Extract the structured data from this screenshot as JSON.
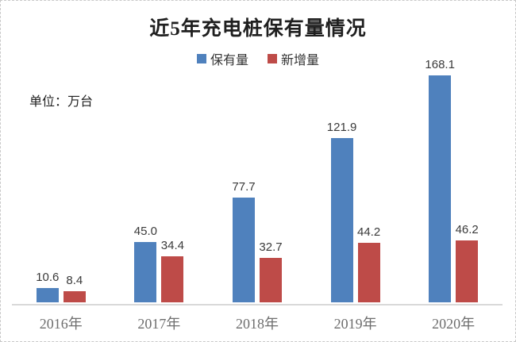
{
  "title": "近5年充电桩保有量情况",
  "unit_label": "单位：万台",
  "legend": [
    {
      "label": "保有量",
      "color": "#4F81BD"
    },
    {
      "label": "新增量",
      "color": "#BE4B48"
    }
  ],
  "colors": {
    "axis": "#d9d9d9",
    "value_label_text": "#3a3a3a",
    "category_text": "#6e6e6e"
  },
  "chart_data": {
    "type": "bar",
    "title": "近5年充电桩保有量情况",
    "categories": [
      "2016年",
      "2017年",
      "2018年",
      "2019年",
      "2020年"
    ],
    "series": [
      {
        "name": "保有量",
        "color": "#4F81BD",
        "values": [
          10.6,
          45.0,
          77.7,
          121.9,
          168.1
        ],
        "labels": [
          "10.6",
          "45.0",
          "77.7",
          "121.9",
          "168.1"
        ]
      },
      {
        "name": "新增量",
        "color": "#BE4B48",
        "values": [
          8.4,
          34.4,
          32.7,
          44.2,
          46.2
        ],
        "labels": [
          "8.4",
          "34.4",
          "32.7",
          "44.2",
          "46.2"
        ]
      }
    ],
    "ylabel": "万台",
    "ylim": [
      0,
      170
    ],
    "grid": false,
    "y_axis_visible": false,
    "legend_position": "top",
    "value_labels": true
  }
}
